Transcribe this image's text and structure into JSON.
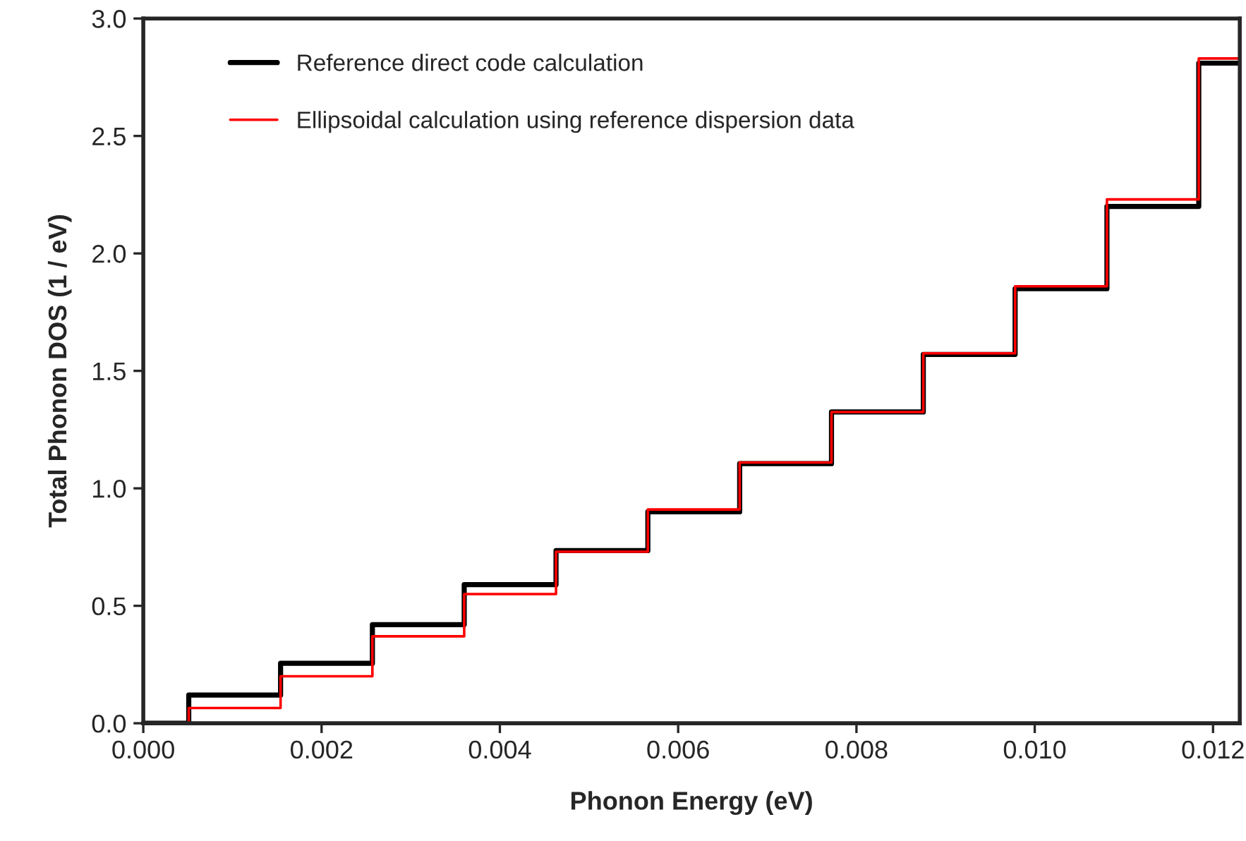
{
  "chart_data": {
    "type": "step",
    "xlabel": "Phonon Energy (eV)",
    "ylabel": "Total Phonon DOS (1 / eV)",
    "x": [
      0,
      0.00051,
      0.00154,
      0.00257,
      0.0036,
      0.00463,
      0.00566,
      0.00669,
      0.00772,
      0.00875,
      0.00978,
      0.01081,
      0.01184,
      0.0123
    ],
    "series": [
      {
        "name": "Reference direct code calculation",
        "color": "#000000",
        "values": [
          0,
          0.12,
          0.255,
          0.42,
          0.59,
          0.735,
          0.9,
          1.105,
          1.325,
          1.57,
          1.85,
          2.2,
          2.81,
          2.81
        ]
      },
      {
        "name": "Ellipsoidal calculation using reference dispersion data",
        "color": "#ff0000",
        "values": [
          0,
          0.065,
          0.2,
          0.37,
          0.55,
          0.73,
          0.91,
          1.11,
          1.325,
          1.575,
          1.86,
          2.23,
          2.83,
          2.83
        ]
      }
    ],
    "xlim": [
      0,
      0.0123
    ],
    "ylim": [
      0,
      3.0
    ],
    "xticks": [
      {
        "value": 0,
        "label": "0.000"
      },
      {
        "value": 0.002,
        "label": "0.002"
      },
      {
        "value": 0.004,
        "label": "0.004"
      },
      {
        "value": 0.006,
        "label": "0.006"
      },
      {
        "value": 0.008,
        "label": "0.008"
      },
      {
        "value": 0.01,
        "label": "0.010"
      },
      {
        "value": 0.012,
        "label": "0.012"
      }
    ],
    "yticks": [
      {
        "value": 0,
        "label": "0.0"
      },
      0.5,
      {
        "value": 1,
        "label": "1.0"
      },
      1.5,
      {
        "value": 2,
        "label": "2.0"
      },
      2.5,
      {
        "value": 3,
        "label": "3.0"
      }
    ],
    "grid": false,
    "legend": "top left"
  }
}
